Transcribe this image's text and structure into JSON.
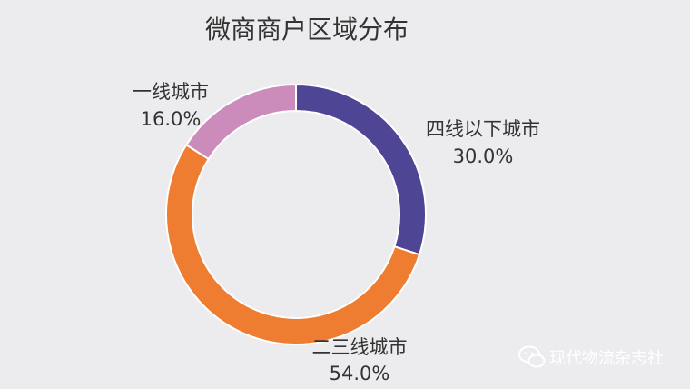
{
  "chart_data": {
    "type": "pie",
    "title": "微商商户区域分布",
    "categories": [
      "四线以下城市",
      "二三线城市",
      "一线城市"
    ],
    "values": [
      30.0,
      54.0,
      16.0
    ],
    "value_labels": [
      "30.0%",
      "54.0%",
      "16.0%"
    ],
    "colors": [
      "#4e4594",
      "#ee7d31",
      "#cb8cbb"
    ],
    "hole": "donut",
    "legend": "none"
  },
  "watermark": {
    "text": "现代物流杂志社",
    "icon": "wechat-icon"
  }
}
